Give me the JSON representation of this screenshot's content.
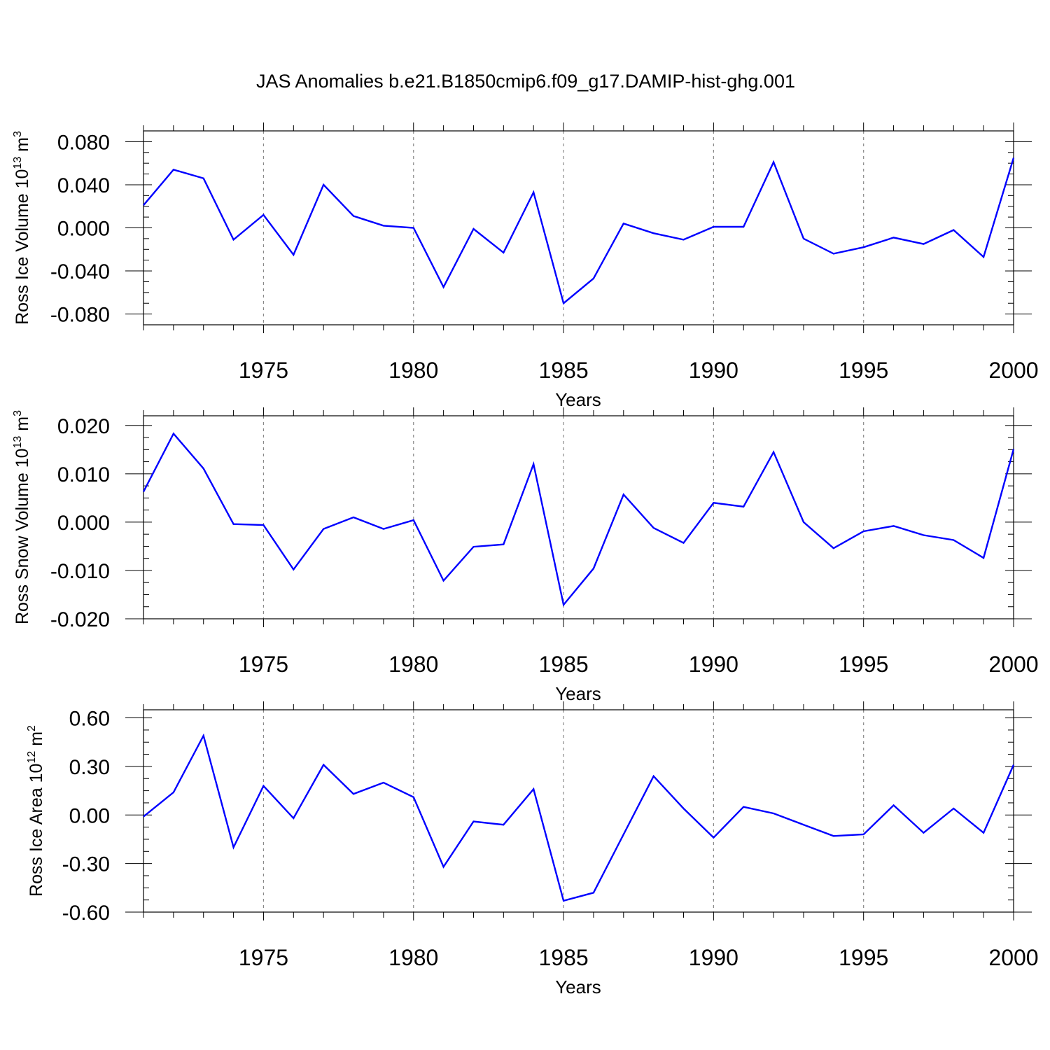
{
  "title": "JAS Anomalies b.e21.B1850cmip6.f09_g17.DAMIP-hist-ghg.001",
  "chart_data": [
    {
      "type": "line",
      "title": "",
      "xlabel": "Years",
      "ylabel": {
        "main": "Ross Ice Volume 10",
        "exp": "13",
        "unit": " m",
        "unit_exp": "3"
      },
      "xlim": [
        1971,
        2000
      ],
      "ylim": [
        -0.09,
        0.09
      ],
      "x_ticks": [
        1975,
        1980,
        1985,
        1990,
        1995,
        2000
      ],
      "x_tick_labels": [
        "1975",
        "1980",
        "1985",
        "1990",
        "1995",
        "2000"
      ],
      "y_ticks": [
        -0.08,
        -0.04,
        0.0,
        0.04,
        0.08
      ],
      "y_tick_labels": [
        "-0.080",
        "-0.040",
        "0.000",
        "0.040",
        "0.080"
      ],
      "grid": "dashed vertical at major x ticks",
      "color": "#0000ff",
      "x": [
        1971,
        1972,
        1973,
        1974,
        1975,
        1976,
        1977,
        1978,
        1979,
        1980,
        1981,
        1982,
        1983,
        1984,
        1985,
        1986,
        1987,
        1988,
        1989,
        1990,
        1991,
        1992,
        1993,
        1994,
        1995,
        1996,
        1997,
        1998,
        1999,
        2000
      ],
      "values": [
        0.021,
        0.054,
        0.046,
        -0.011,
        0.012,
        -0.025,
        0.04,
        0.011,
        0.002,
        0.0,
        -0.055,
        -0.001,
        -0.023,
        0.033,
        -0.07,
        -0.047,
        0.004,
        -0.005,
        -0.011,
        0.001,
        0.001,
        0.061,
        -0.01,
        -0.024,
        -0.018,
        -0.009,
        -0.015,
        -0.002,
        -0.027,
        0.065
      ]
    },
    {
      "type": "line",
      "title": "",
      "xlabel": "Years",
      "ylabel": {
        "main": "Ross Snow Volume 10",
        "exp": "13",
        "unit": " m",
        "unit_exp": "3"
      },
      "xlim": [
        1971,
        2000
      ],
      "ylim": [
        -0.02,
        0.022
      ],
      "x_ticks": [
        1975,
        1980,
        1985,
        1990,
        1995,
        2000
      ],
      "x_tick_labels": [
        "1975",
        "1980",
        "1985",
        "1990",
        "1995",
        "2000"
      ],
      "y_ticks": [
        -0.02,
        -0.01,
        0.0,
        0.01,
        0.02
      ],
      "y_tick_labels": [
        "-0.020",
        "-0.010",
        "0.000",
        "0.010",
        "0.020"
      ],
      "grid": "dashed vertical at major x ticks",
      "color": "#0000ff",
      "x": [
        1971,
        1972,
        1973,
        1974,
        1975,
        1976,
        1977,
        1978,
        1979,
        1980,
        1981,
        1982,
        1983,
        1984,
        1985,
        1986,
        1987,
        1988,
        1989,
        1990,
        1991,
        1992,
        1993,
        1994,
        1995,
        1996,
        1997,
        1998,
        1999,
        2000
      ],
      "values": [
        0.0063,
        0.0183,
        0.0111,
        -0.0004,
        -0.0006,
        -0.0098,
        -0.0014,
        0.001,
        -0.0014,
        0.0004,
        -0.0121,
        -0.0051,
        -0.0046,
        0.012,
        -0.0171,
        -0.0096,
        0.0057,
        -0.0012,
        -0.0043,
        0.004,
        0.0032,
        0.0145,
        0.0,
        -0.0054,
        -0.0019,
        -0.0008,
        -0.0027,
        -0.0037,
        -0.0074,
        0.0151
      ]
    },
    {
      "type": "line",
      "title": "",
      "xlabel": "Years",
      "ylabel": {
        "main": "Ross Ice Area 10",
        "exp": "12",
        "unit": " m",
        "unit_exp": "2"
      },
      "xlim": [
        1971,
        2000
      ],
      "ylim": [
        -0.6,
        0.65
      ],
      "x_ticks": [
        1975,
        1980,
        1985,
        1990,
        1995,
        2000
      ],
      "x_tick_labels": [
        "1975",
        "1980",
        "1985",
        "1990",
        "1995",
        "2000"
      ],
      "y_ticks": [
        -0.6,
        -0.3,
        0.0,
        0.3,
        0.6
      ],
      "y_tick_labels": [
        "-0.60",
        "-0.30",
        "0.00",
        "0.30",
        "0.60"
      ],
      "grid": "dashed vertical at major x ticks",
      "color": "#0000ff",
      "x": [
        1971,
        1972,
        1973,
        1974,
        1975,
        1976,
        1977,
        1978,
        1979,
        1980,
        1981,
        1982,
        1983,
        1984,
        1985,
        1986,
        1987,
        1988,
        1989,
        1990,
        1991,
        1992,
        1993,
        1994,
        1995,
        1996,
        1997,
        1998,
        1999,
        2000
      ],
      "values": [
        -0.01,
        0.14,
        0.49,
        -0.2,
        0.18,
        -0.02,
        0.31,
        0.13,
        0.2,
        0.11,
        -0.32,
        -0.04,
        -0.06,
        0.16,
        -0.53,
        -0.48,
        -0.12,
        0.24,
        0.04,
        -0.14,
        0.05,
        0.01,
        -0.06,
        -0.13,
        -0.12,
        0.06,
        -0.11,
        0.04,
        -0.11,
        0.31
      ]
    }
  ]
}
